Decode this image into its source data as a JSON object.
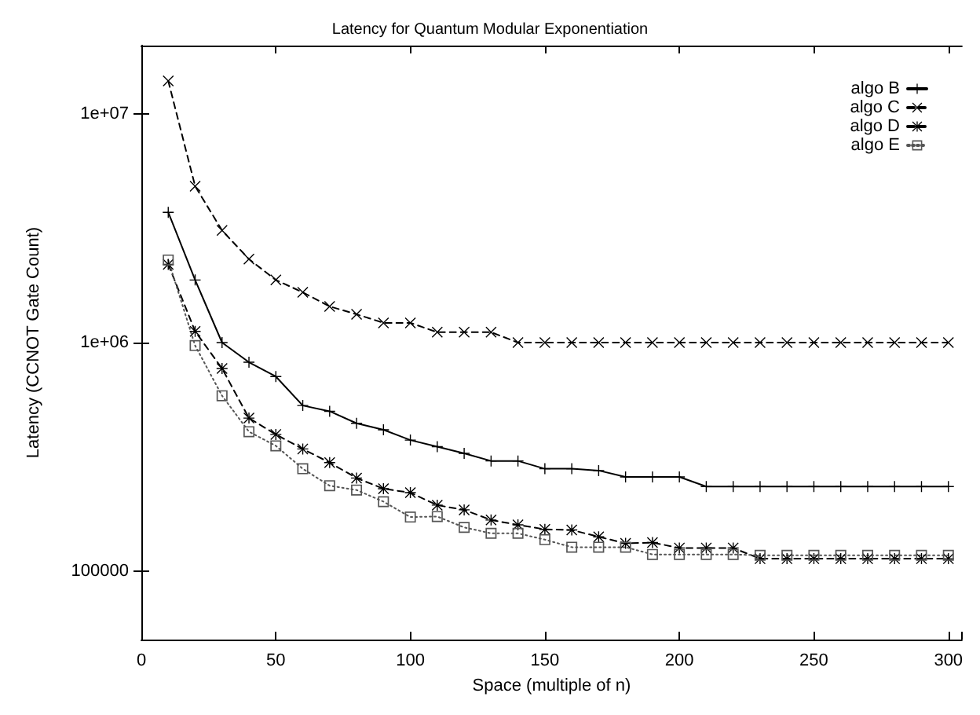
{
  "chart_data": {
    "type": "line",
    "title": "Latency for Quantum Modular Exponentiation",
    "xlabel": "Space (multiple of n)",
    "ylabel": "Latency (CCNOT Gate Count)",
    "x": [
      10,
      20,
      30,
      40,
      50,
      60,
      70,
      80,
      90,
      100,
      110,
      120,
      130,
      140,
      150,
      160,
      170,
      180,
      190,
      200,
      210,
      220,
      230,
      240,
      250,
      260,
      270,
      280,
      290,
      300
    ],
    "series": [
      {
        "name": "algo B",
        "color": "#000000",
        "marker": "plus",
        "line_style": "solid",
        "values": [
          3720000,
          1880000,
          1000000,
          820000,
          710000,
          530000,
          500000,
          443000,
          415000,
          374000,
          350000,
          327000,
          303000,
          303000,
          280000,
          280000,
          275000,
          258000,
          258000,
          258000,
          234000,
          234000,
          234000,
          234000,
          234000,
          234000,
          234000,
          234000,
          234000,
          234000
        ]
      },
      {
        "name": "algo C",
        "color": "#000000",
        "marker": "cross",
        "line_style": "dashed",
        "values": [
          14000000,
          4840000,
          3100000,
          2320000,
          1880000,
          1660000,
          1440000,
          1330000,
          1220000,
          1220000,
          1110000,
          1110000,
          1110000,
          1000000,
          1000000,
          1000000,
          1000000,
          1000000,
          1000000,
          1000000,
          1000000,
          1000000,
          1000000,
          1000000,
          1000000,
          1000000,
          1000000,
          1000000,
          1000000,
          1000000
        ]
      },
      {
        "name": "algo D",
        "color": "#000000",
        "marker": "star",
        "line_style": "dashed",
        "values": [
          2200000,
          1120000,
          770000,
          467000,
          396000,
          342000,
          298000,
          255000,
          229000,
          220000,
          194000,
          185000,
          167000,
          159000,
          152000,
          151000,
          141000,
          132000,
          133000,
          126000,
          126000,
          126000,
          113000,
          113000,
          113000,
          113000,
          113000,
          113000,
          113000,
          113000
        ]
      },
      {
        "name": "algo E",
        "color": "#555555",
        "marker": "square",
        "line_style": "dotted",
        "values": [
          2300000,
          970000,
          585000,
          407000,
          353000,
          280000,
          236000,
          226000,
          201000,
          172000,
          173000,
          155000,
          146000,
          146000,
          137000,
          127000,
          127000,
          127000,
          118000,
          118000,
          118000,
          118000,
          117000,
          117000,
          117000,
          117000,
          117000,
          117000,
          117000,
          117000
        ]
      }
    ],
    "log": "y",
    "xlim": [
      0,
      305
    ],
    "ylim": [
      50000,
      20000000
    ],
    "xticks": [
      0,
      50,
      100,
      150,
      200,
      250,
      300
    ],
    "yticks": [
      {
        "value": 100000,
        "label": "100000"
      },
      {
        "value": 1000000,
        "label": "1e+06"
      },
      {
        "value": 10000000,
        "label": "1e+07"
      }
    ],
    "grid": false,
    "legend": "top right"
  }
}
